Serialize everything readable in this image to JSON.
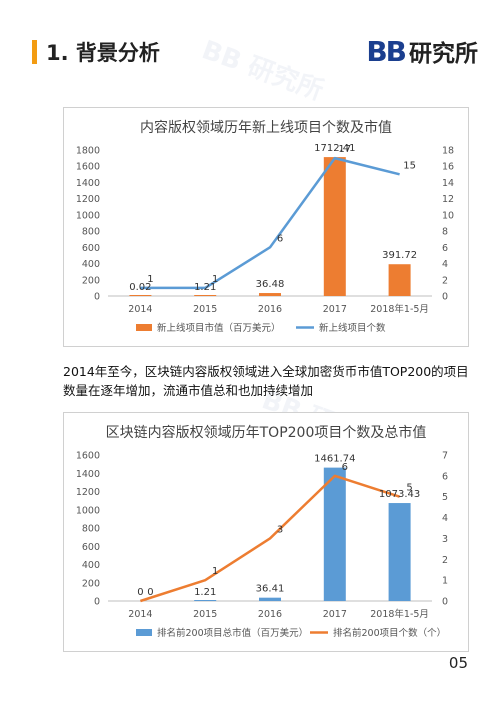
{
  "header": {
    "title": "1. 背景分析"
  },
  "logo": {
    "mark": "BB",
    "text": "研究所"
  },
  "paragraph": "2014年至今，区块链内容版权领域进入全球加密货币市值TOP200的项目数量在逐年增加，流通市值总和也加持续增加",
  "page_number": "05",
  "colors": {
    "accent": "#f39c12",
    "bar1": "#ed7d31",
    "line1": "#5b9bd5",
    "bar2": "#5b9bd5",
    "line2": "#ed7d31"
  },
  "chart_data": [
    {
      "type": "bar+line",
      "title": "内容版权领域历年新上线项目个数及市值",
      "categories": [
        "2014",
        "2015",
        "2016",
        "2017",
        "2018年1-5月"
      ],
      "series": [
        {
          "name": "新上线项目市值（百万美元）",
          "type": "bar",
          "axis": "left",
          "values": [
            0.02,
            1.21,
            36.48,
            1712.41,
            391.72
          ],
          "labels": [
            "0.02",
            "1.21",
            "36.48",
            "1712.41",
            "391.72"
          ]
        },
        {
          "name": "新上线项目个数",
          "type": "line",
          "axis": "right",
          "values": [
            1,
            1,
            6,
            17,
            15
          ],
          "labels": [
            "1",
            "1",
            "6",
            "17",
            "15"
          ]
        }
      ],
      "y_left": {
        "min": 0,
        "max": 1800,
        "ticks": [
          "0",
          "200",
          "400",
          "600",
          "800",
          "1000",
          "1200",
          "1400",
          "1600",
          "1800"
        ]
      },
      "y_right": {
        "min": 0,
        "max": 18,
        "ticks": [
          "0",
          "2",
          "4",
          "6",
          "8",
          "10",
          "12",
          "14",
          "16",
          "18"
        ]
      },
      "legend": "bottom"
    },
    {
      "type": "bar+line",
      "title": "区块链内容版权领域历年TOP200项目个数及总市值",
      "categories": [
        "2014",
        "2015",
        "2016",
        "2017",
        "2018年1-5月"
      ],
      "series": [
        {
          "name": "排名前200项目总市值（百万美元）",
          "type": "bar",
          "axis": "left",
          "values": [
            0,
            1.21,
            36.41,
            1461.74,
            1073.43
          ],
          "labels": [
            "0",
            "1.21",
            "36.41",
            "1461.74",
            "1073.43"
          ]
        },
        {
          "name": "排名前200项目个数（个）",
          "type": "line",
          "axis": "right",
          "values": [
            0,
            1,
            3,
            6,
            5
          ],
          "labels": [
            "0",
            "1",
            "3",
            "6",
            "5"
          ]
        }
      ],
      "y_left": {
        "min": 0,
        "max": 1600,
        "ticks": [
          "0",
          "200",
          "400",
          "600",
          "800",
          "1000",
          "1200",
          "1400",
          "1600"
        ]
      },
      "y_right": {
        "min": 0,
        "max": 7,
        "ticks": [
          "0",
          "1",
          "2",
          "3",
          "4",
          "5",
          "6",
          "7"
        ]
      },
      "legend": "bottom"
    }
  ]
}
